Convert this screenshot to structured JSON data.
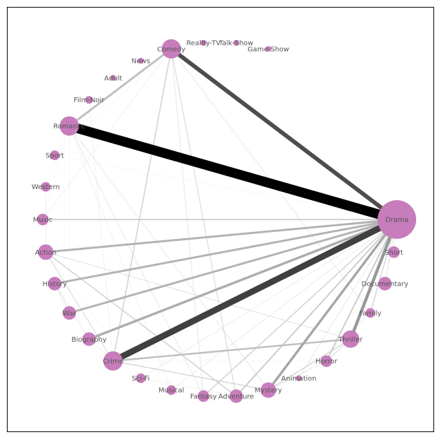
{
  "colors": {
    "node_fill": "#c77cbc",
    "edge_color": "#000000",
    "frame": "#000000",
    "label": "#555555",
    "background": "#ffffff"
  },
  "nodes": [
    {
      "id": "Drama",
      "label": "Drama",
      "angle_deg": 0,
      "size": 10
    },
    {
      "id": "Short",
      "label": "Short",
      "angle_deg": -10.6,
      "size": 3
    },
    {
      "id": "Documentary",
      "label": "Documentary",
      "angle_deg": -21.2,
      "size": 3.5
    },
    {
      "id": "Family",
      "label": "Family",
      "angle_deg": -31.8,
      "size": 2.5
    },
    {
      "id": "Thriller",
      "label": "Thriller",
      "angle_deg": -42.4,
      "size": 4.5
    },
    {
      "id": "Horror",
      "label": "Horror",
      "angle_deg": -53,
      "size": 3
    },
    {
      "id": "Animation",
      "label": "Animation",
      "angle_deg": -63.5,
      "size": 1.5
    },
    {
      "id": "Mystery",
      "label": "Mystery",
      "angle_deg": -74.1,
      "size": 4
    },
    {
      "id": "Adventure",
      "label": "Adventure",
      "angle_deg": -84.7,
      "size": 3.5
    },
    {
      "id": "Fantasy",
      "label": "Fantasy",
      "angle_deg": -95.3,
      "size": 3
    },
    {
      "id": "Musical",
      "label": "Musical",
      "angle_deg": -105.9,
      "size": 2.5
    },
    {
      "id": "Sci-Fi",
      "label": "Sci-Fi",
      "angle_deg": -116.5,
      "size": 2.5
    },
    {
      "id": "Crime",
      "label": "Crime",
      "angle_deg": -127.1,
      "size": 5
    },
    {
      "id": "Biography",
      "label": "Biography",
      "angle_deg": -137.6,
      "size": 3.5
    },
    {
      "id": "War",
      "label": "War",
      "angle_deg": -148.2,
      "size": 3.5
    },
    {
      "id": "History",
      "label": "History",
      "angle_deg": -158.8,
      "size": 3.5
    },
    {
      "id": "Action",
      "label": "Action",
      "angle_deg": -169.4,
      "size": 4
    },
    {
      "id": "Music",
      "label": "Music",
      "angle_deg": -180,
      "size": 3
    },
    {
      "id": "Western",
      "label": "Western",
      "angle_deg": -190.6,
      "size": 2.5
    },
    {
      "id": "Sport",
      "label": "Sport",
      "angle_deg": -201.2,
      "size": 2.5
    },
    {
      "id": "Romance",
      "label": "Romance",
      "angle_deg": -211.8,
      "size": 5
    },
    {
      "id": "Film-Noir",
      "label": "Film-Noir",
      "angle_deg": -222.4,
      "size": 2
    },
    {
      "id": "Adult",
      "label": "Adult",
      "angle_deg": -233,
      "size": 1.5
    },
    {
      "id": "News",
      "label": "News",
      "angle_deg": -243.5,
      "size": 1.5
    },
    {
      "id": "Comedy",
      "label": "Comedy",
      "angle_deg": -254.1,
      "size": 5
    },
    {
      "id": "Reality-TV",
      "label": "Reality-TV",
      "angle_deg": -264.7,
      "size": 1.5
    },
    {
      "id": "Talk-Show",
      "label": "Talk-Show",
      "angle_deg": -275.3,
      "size": 1.5
    },
    {
      "id": "Game-Show",
      "label": "Game-Show",
      "angle_deg": -285.9,
      "size": 1.5
    }
  ],
  "edges": [
    {
      "source": "Drama",
      "target": "Romance",
      "weight": 14,
      "shade": 0.0
    },
    {
      "source": "Drama",
      "target": "Crime",
      "weight": 9,
      "shade": 0.25
    },
    {
      "source": "Drama",
      "target": "Comedy",
      "weight": 6,
      "shade": 0.3
    },
    {
      "source": "Drama",
      "target": "Thriller",
      "weight": 4.5,
      "shade": 0.6
    },
    {
      "source": "Drama",
      "target": "Mystery",
      "weight": 3.5,
      "shade": 0.65
    },
    {
      "source": "Drama",
      "target": "Biography",
      "weight": 3.5,
      "shade": 0.68
    },
    {
      "source": "Drama",
      "target": "War",
      "weight": 3,
      "shade": 0.7
    },
    {
      "source": "Drama",
      "target": "History",
      "weight": 3,
      "shade": 0.7
    },
    {
      "source": "Drama",
      "target": "Action",
      "weight": 3,
      "shade": 0.7
    },
    {
      "source": "Drama",
      "target": "Adventure",
      "weight": 2,
      "shade": 0.8
    },
    {
      "source": "Drama",
      "target": "Horror",
      "weight": 2,
      "shade": 0.8
    },
    {
      "source": "Drama",
      "target": "Fantasy",
      "weight": 1.5,
      "shade": 0.82
    },
    {
      "source": "Drama",
      "target": "Family",
      "weight": 1.5,
      "shade": 0.84
    },
    {
      "source": "Drama",
      "target": "Documentary",
      "weight": 1,
      "shade": 0.88
    },
    {
      "source": "Drama",
      "target": "Music",
      "weight": 2,
      "shade": 0.82
    },
    {
      "source": "Drama",
      "target": "Short",
      "weight": 1,
      "shade": 0.9
    },
    {
      "source": "Drama",
      "target": "Animation",
      "weight": 1,
      "shade": 0.9
    },
    {
      "source": "Drama",
      "target": "Sci-Fi",
      "weight": 1,
      "shade": 0.92
    },
    {
      "source": "Drama",
      "target": "Musical",
      "weight": 1,
      "shade": 0.92
    },
    {
      "source": "Romance",
      "target": "Comedy",
      "weight": 3,
      "shade": 0.75
    },
    {
      "source": "Crime",
      "target": "Thriller",
      "weight": 2.5,
      "shade": 0.75
    },
    {
      "source": "Crime",
      "target": "Comedy",
      "weight": 1.5,
      "shade": 0.82
    },
    {
      "source": "Crime",
      "target": "Mystery",
      "weight": 1.5,
      "shade": 0.84
    },
    {
      "source": "Crime",
      "target": "Action",
      "weight": 1.2,
      "shade": 0.86
    },
    {
      "source": "Action",
      "target": "Adventure",
      "weight": 1.5,
      "shade": 0.82
    },
    {
      "source": "Action",
      "target": "Thriller",
      "weight": 1,
      "shade": 0.88
    },
    {
      "source": "Comedy",
      "target": "Adventure",
      "weight": 1.2,
      "shade": 0.86
    },
    {
      "source": "Comedy",
      "target": "Family",
      "weight": 1,
      "shade": 0.9
    },
    {
      "source": "Comedy",
      "target": "Fantasy",
      "weight": 1,
      "shade": 0.9
    },
    {
      "source": "Romance",
      "target": "Fantasy",
      "weight": 1,
      "shade": 0.9
    },
    {
      "source": "Romance",
      "target": "Mystery",
      "weight": 1,
      "shade": 0.9
    },
    {
      "source": "Mystery",
      "target": "Thriller",
      "weight": 1.5,
      "shade": 0.84
    },
    {
      "source": "Horror",
      "target": "Thriller",
      "weight": 1.2,
      "shade": 0.86
    },
    {
      "source": "Horror",
      "target": "Mystery",
      "weight": 1,
      "shade": 0.9
    },
    {
      "source": "History",
      "target": "War",
      "weight": 1,
      "shade": 0.9
    },
    {
      "source": "Biography",
      "target": "History",
      "weight": 1,
      "shade": 0.9
    },
    {
      "source": "Romance",
      "target": "Musical",
      "weight": 0.8,
      "shade": 0.93
    },
    {
      "source": "Western",
      "target": "Action",
      "weight": 0.8,
      "shade": 0.93
    },
    {
      "source": "Comedy",
      "target": "Music",
      "weight": 0.8,
      "shade": 0.93
    },
    {
      "source": "Crime",
      "target": "Film-Noir",
      "weight": 0.8,
      "shade": 0.93
    },
    {
      "source": "Biography",
      "target": "Crime",
      "weight": 0.8,
      "shade": 0.93
    },
    {
      "source": "Sport",
      "target": "Comedy",
      "weight": 0.6,
      "shade": 0.95
    },
    {
      "source": "Sci-Fi",
      "target": "Adventure",
      "weight": 0.8,
      "shade": 0.93
    },
    {
      "source": "Animation",
      "target": "Family",
      "weight": 0.8,
      "shade": 0.93
    },
    {
      "source": "Documentary",
      "target": "Thriller",
      "weight": 0.6,
      "shade": 0.95
    },
    {
      "source": "Romance",
      "target": "War",
      "weight": 0.6,
      "shade": 0.95
    },
    {
      "source": "Music",
      "target": "Romance",
      "weight": 0.6,
      "shade": 0.95
    },
    {
      "source": "Western",
      "target": "Romance",
      "weight": 0.6,
      "shade": 0.95
    },
    {
      "source": "Sport",
      "target": "Drama",
      "weight": 0.6,
      "shade": 0.95
    },
    {
      "source": "Adventure",
      "target": "Fantasy",
      "weight": 0.6,
      "shade": 0.95
    },
    {
      "source": "Action",
      "target": "Sci-Fi",
      "weight": 0.6,
      "shade": 0.95
    },
    {
      "source": "Crime",
      "target": "Horror",
      "weight": 0.6,
      "shade": 0.95
    },
    {
      "source": "War",
      "target": "Action",
      "weight": 0.6,
      "shade": 0.95
    }
  ]
}
